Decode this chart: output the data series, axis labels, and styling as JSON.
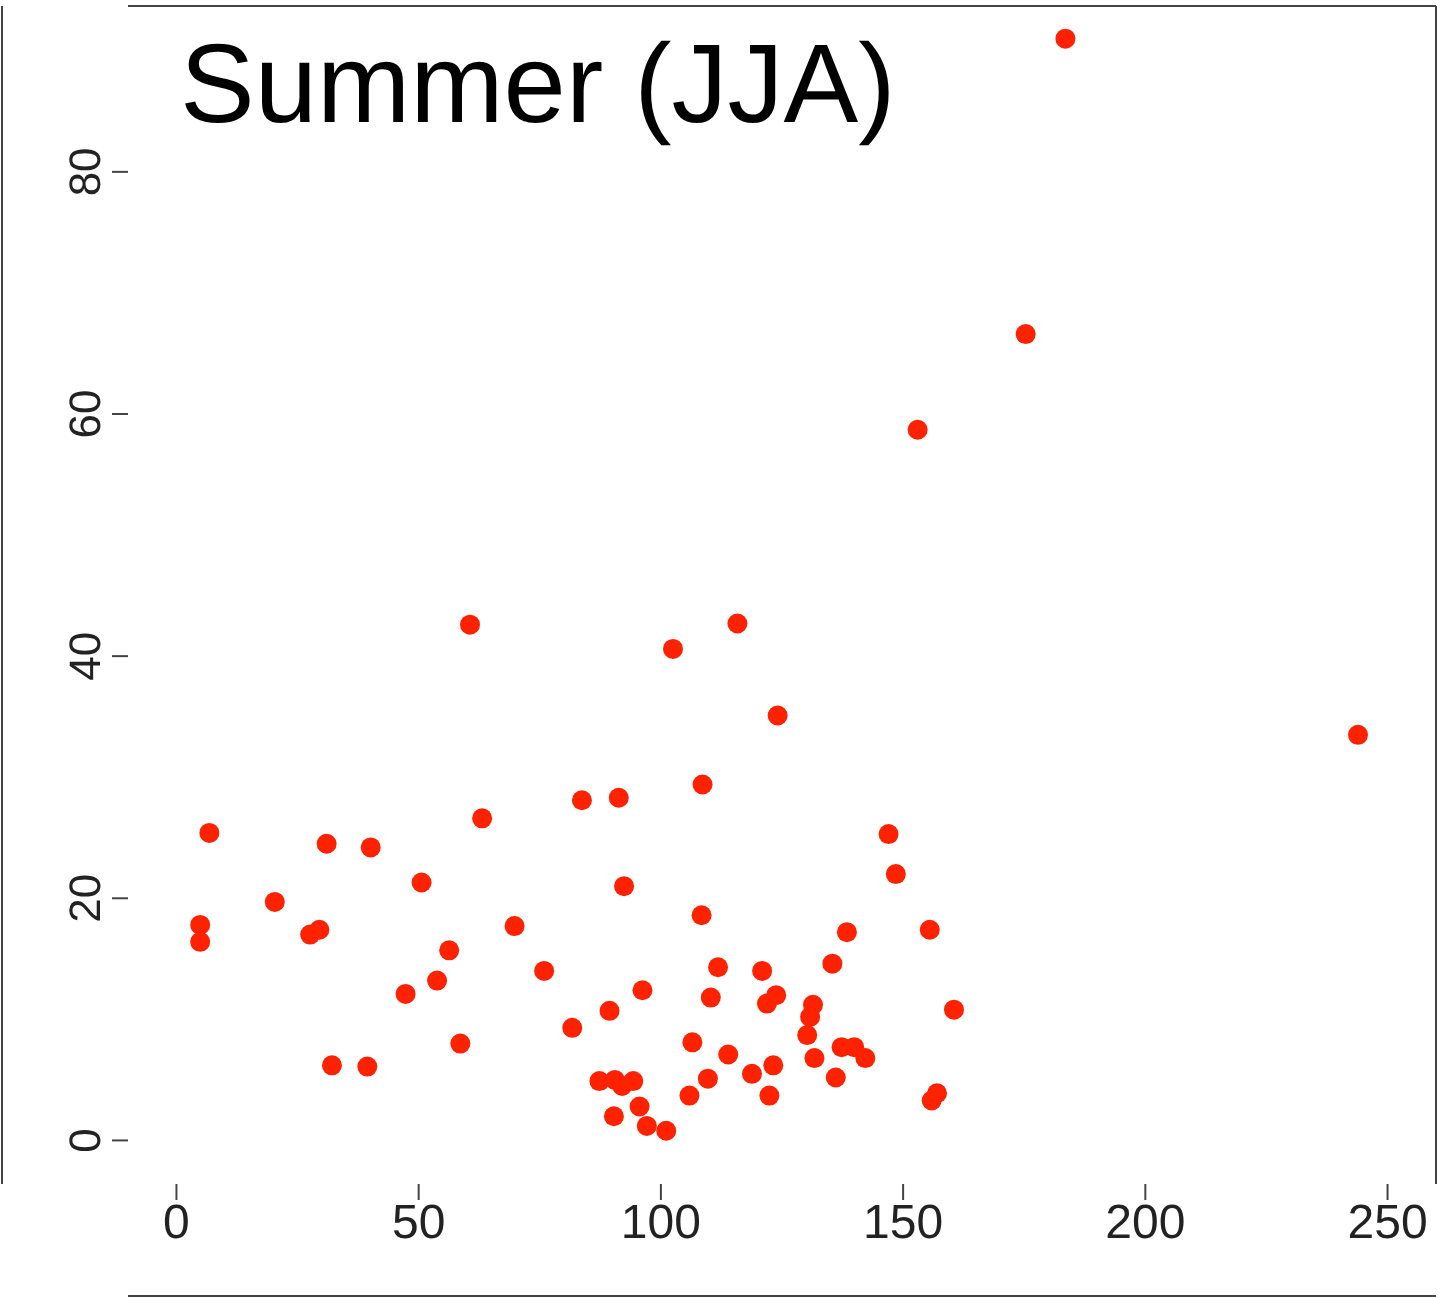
{
  "chart_data": {
    "type": "scatter",
    "title": "Summer (JJA)",
    "xlim": [
      -10,
      260
    ],
    "ylim": [
      -3.6,
      93.7
    ],
    "xticks": [
      0,
      50,
      100,
      150,
      200,
      250
    ],
    "yticks": [
      0,
      20,
      40,
      60,
      80
    ],
    "grid": false,
    "legend": false,
    "marker": "circle",
    "series": [
      {
        "color": "#ff2200",
        "x": [
          183.5,
          175.3,
          153.0,
          243.9,
          60.6,
          102.5,
          115.8,
          124.1,
          6.8,
          31.0,
          40.1,
          63.1,
          83.7,
          91.3,
          108.6,
          147.0,
          148.5,
          4.9,
          4.9,
          20.3,
          27.6,
          29.5,
          50.6,
          92.4,
          56.3,
          69.8,
          47.3,
          53.8,
          75.9,
          58.6,
          32.1,
          39.4,
          81.7,
          89.4,
          96.2,
          108.4,
          138.4,
          155.5,
          111.8,
          110.3,
          120.9,
          121.9,
          123.8,
          131.4,
          130.8,
          130.2,
          135.4,
          160.5,
          106.5,
          113.9,
          131.7,
          137.3,
          139.9,
          142.2,
          87.3,
          90.5,
          92.0,
          94.3,
          95.6,
          90.3,
          97.1,
          101.1,
          105.9,
          109.7,
          118.8,
          123.2,
          122.4,
          136.1,
          155.9,
          157.0
        ],
        "values": [
          91.0,
          66.6,
          58.7,
          33.5,
          42.6,
          40.6,
          42.7,
          35.1,
          25.4,
          24.5,
          24.2,
          26.6,
          28.1,
          28.3,
          29.4,
          25.3,
          22.0,
          17.8,
          16.4,
          19.7,
          17.0,
          17.4,
          21.3,
          21.0,
          15.7,
          17.7,
          12.1,
          13.2,
          14.0,
          8.0,
          6.2,
          6.1,
          9.3,
          10.7,
          12.4,
          18.6,
          17.2,
          17.4,
          14.3,
          11.8,
          14.0,
          11.3,
          12.0,
          11.2,
          10.2,
          8.7,
          14.6,
          10.8,
          8.1,
          7.1,
          6.8,
          7.7,
          7.7,
          6.8,
          4.9,
          5.0,
          4.5,
          4.9,
          2.8,
          2.0,
          1.2,
          0.8,
          3.7,
          5.1,
          5.5,
          6.2,
          3.7,
          5.2,
          3.3,
          3.9
        ]
      }
    ]
  }
}
